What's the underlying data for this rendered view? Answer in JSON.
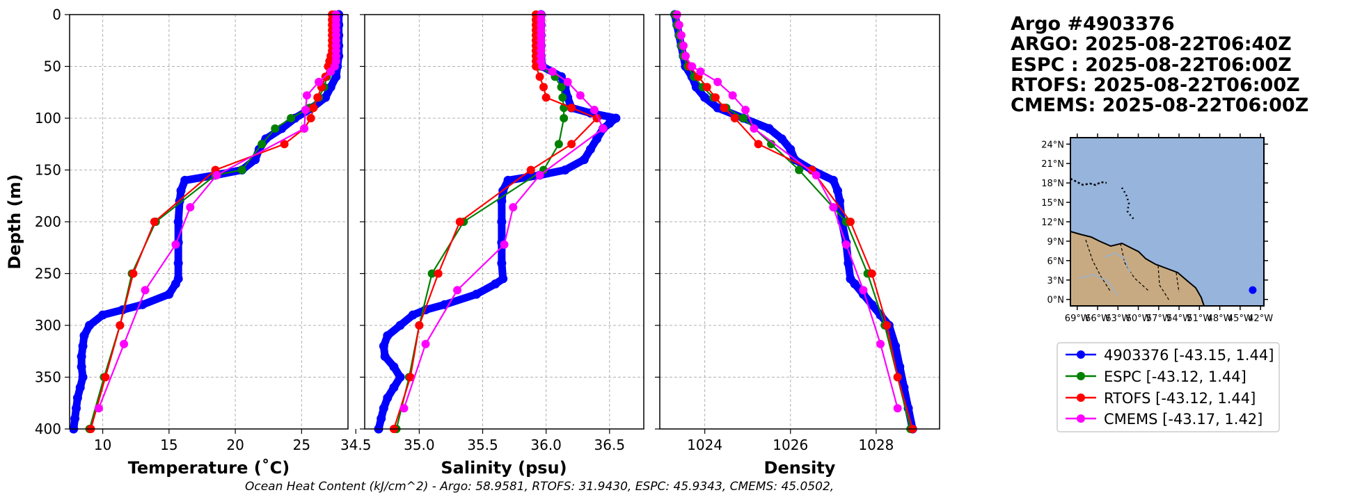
{
  "colors": {
    "argo": "#0000ff",
    "espc": "#008000",
    "rtofs": "#ff0000",
    "cmems": "#ff00ff",
    "ocean": "#96b4dc",
    "land": "#c8aa82"
  },
  "header": {
    "lines": [
      "Argo #4903376",
      "ARGO: 2025-08-22T06:40Z",
      "ESPC : 2025-08-22T06:00Z",
      "RTOFS: 2025-08-22T06:00Z",
      "CMEMS: 2025-08-22T06:00Z"
    ]
  },
  "footer": {
    "text": "Ocean Heat Content (kJ/cm^2) - Argo: 58.9581,  RTOFS: 31.9430,  ESPC: 45.9343,  CMEMS: 45.0502,"
  },
  "legend": {
    "entries": [
      {
        "label": "4903376 [-43.15, 1.44]",
        "color": "#0000ff"
      },
      {
        "label": "ESPC [-43.12, 1.44]",
        "color": "#008000"
      },
      {
        "label": "RTOFS [-43.12, 1.44]",
        "color": "#ff0000"
      },
      {
        "label": "CMEMS [-43.17, 1.42]",
        "color": "#ff00ff"
      }
    ]
  },
  "map": {
    "lat_ticks": [
      "0°N",
      "3°N",
      "6°N",
      "9°N",
      "12°N",
      "15°N",
      "18°N",
      "21°N",
      "24°N"
    ],
    "lon_ticks": [
      "69°W",
      "66°W",
      "63°W",
      "60°W",
      "57°W",
      "54°W",
      "51°W",
      "48°W",
      "45°W",
      "42°W"
    ],
    "lon_range": [
      -70,
      -41.5
    ],
    "lat_range": [
      -1,
      25
    ],
    "float_position": {
      "lon": -43.15,
      "lat": 1.44
    }
  },
  "chart_data": [
    {
      "type": "line",
      "title": "",
      "xlabel": "Temperature (˚C)",
      "ylabel": "Depth (m)",
      "xlim": [
        7.5,
        28.5
      ],
      "ylim": [
        400,
        0
      ],
      "xticks": [
        10,
        15,
        20,
        25
      ],
      "yticks": [
        0,
        50,
        100,
        150,
        200,
        250,
        300,
        350,
        400
      ],
      "grid": true,
      "series": [
        {
          "name": "4903376",
          "key": "argo",
          "depth": [
            0,
            10,
            20,
            30,
            40,
            50,
            60,
            70,
            80,
            90,
            100,
            110,
            120,
            130,
            140,
            150,
            155,
            160,
            170,
            180,
            200,
            220,
            240,
            255,
            260,
            270,
            280,
            285,
            290,
            300,
            310,
            320,
            330,
            340,
            350,
            360,
            370,
            380,
            390,
            400
          ],
          "values": [
            27.8,
            27.8,
            27.8,
            27.8,
            27.8,
            27.7,
            27.6,
            27.2,
            26.8,
            25.8,
            24.5,
            23.5,
            22.3,
            21.8,
            21.5,
            20.5,
            18.5,
            16.2,
            15.9,
            15.8,
            15.7,
            15.7,
            15.7,
            15.7,
            15.5,
            15.0,
            13.0,
            11.5,
            10.0,
            9.0,
            8.6,
            8.5,
            8.4,
            8.4,
            8.5,
            8.3,
            8.1,
            8.0,
            7.9,
            7.8
          ]
        },
        {
          "name": "ESPC",
          "key": "espc",
          "depth": [
            0,
            5,
            10,
            15,
            20,
            25,
            30,
            35,
            40,
            45,
            50,
            60,
            70,
            80,
            90,
            100,
            110,
            125,
            150,
            155,
            200,
            250,
            300,
            350,
            400
          ],
          "values": [
            27.5,
            27.5,
            27.5,
            27.5,
            27.5,
            27.5,
            27.5,
            27.5,
            27.4,
            27.3,
            27.1,
            26.9,
            26.7,
            26.3,
            25.6,
            24.2,
            23.0,
            22.0,
            20.5,
            18.5,
            14.0,
            12.2,
            11.3,
            10.1,
            9.0
          ]
        },
        {
          "name": "RTOFS",
          "key": "rtofs",
          "depth": [
            0,
            5,
            10,
            15,
            20,
            25,
            30,
            35,
            40,
            45,
            50,
            60,
            70,
            80,
            90,
            100,
            110,
            125,
            150,
            200,
            250,
            300,
            350,
            400
          ],
          "values": [
            27.3,
            27.3,
            27.3,
            27.3,
            27.3,
            27.3,
            27.3,
            27.3,
            27.2,
            27.1,
            27.0,
            26.8,
            26.5,
            26.2,
            25.9,
            25.7,
            25.2,
            23.7,
            18.5,
            13.9,
            12.3,
            11.3,
            10.2,
            9.1
          ]
        },
        {
          "name": "CMEMS",
          "key": "cmems",
          "depth": [
            0,
            5,
            10,
            15,
            20,
            25,
            30,
            35,
            40,
            45,
            50,
            55,
            65,
            78,
            92,
            110,
            155,
            186,
            222,
            266,
            318,
            380
          ],
          "values": [
            27.6,
            27.6,
            27.6,
            27.6,
            27.6,
            27.6,
            27.6,
            27.6,
            27.6,
            27.6,
            27.5,
            27.2,
            26.3,
            25.4,
            25.3,
            25.2,
            18.6,
            16.6,
            15.5,
            13.2,
            11.6,
            9.7
          ]
        }
      ]
    },
    {
      "type": "line",
      "title": "",
      "xlabel": "Salinity (psu)",
      "ylabel": "",
      "xlim": [
        34.57,
        36.77
      ],
      "ylim": [
        400,
        0
      ],
      "xticks": [
        34.5,
        35.0,
        35.5,
        36.0,
        36.5
      ],
      "xtick_labels": [
        "34.5",
        "35.0",
        "35.5",
        "36.0",
        "36.5"
      ],
      "yticks": [
        0,
        50,
        100,
        150,
        200,
        250,
        300,
        350,
        400
      ],
      "grid": true,
      "series": [
        {
          "name": "4903376",
          "key": "argo",
          "depth": [
            0,
            10,
            20,
            30,
            40,
            50,
            60,
            70,
            80,
            90,
            95,
            100,
            105,
            110,
            120,
            130,
            140,
            150,
            155,
            160,
            170,
            180,
            200,
            220,
            240,
            255,
            260,
            270,
            280,
            285,
            290,
            300,
            310,
            320,
            330,
            340,
            350,
            360,
            370,
            380,
            390,
            400
          ],
          "values": [
            35.96,
            35.96,
            35.96,
            35.96,
            35.96,
            35.97,
            36.12,
            36.15,
            36.17,
            36.2,
            36.35,
            36.55,
            36.5,
            36.45,
            36.4,
            36.35,
            36.3,
            36.15,
            35.95,
            35.7,
            35.66,
            35.65,
            35.65,
            35.65,
            35.65,
            35.66,
            35.6,
            35.45,
            35.2,
            35.05,
            34.95,
            34.85,
            34.75,
            34.72,
            34.73,
            34.8,
            34.85,
            34.8,
            34.75,
            34.72,
            34.7,
            34.68
          ]
        },
        {
          "name": "ESPC",
          "key": "espc",
          "depth": [
            0,
            5,
            10,
            15,
            20,
            25,
            30,
            35,
            40,
            45,
            50,
            60,
            70,
            80,
            90,
            100,
            125,
            150,
            200,
            250,
            300,
            350,
            400
          ],
          "values": [
            35.92,
            35.92,
            35.92,
            35.92,
            35.92,
            35.92,
            35.92,
            35.92,
            35.92,
            35.93,
            35.95,
            36.07,
            36.12,
            36.13,
            36.14,
            36.14,
            36.1,
            35.98,
            35.35,
            35.1,
            35.0,
            34.92,
            34.82
          ]
        },
        {
          "name": "RTOFS",
          "key": "rtofs",
          "depth": [
            0,
            5,
            10,
            15,
            20,
            25,
            30,
            35,
            40,
            45,
            50,
            60,
            70,
            80,
            90,
            100,
            125,
            150,
            200,
            250,
            300,
            350,
            400
          ],
          "values": [
            35.92,
            35.92,
            35.92,
            35.92,
            35.92,
            35.92,
            35.92,
            35.92,
            35.92,
            35.92,
            35.92,
            35.95,
            35.98,
            36.0,
            36.2,
            36.4,
            36.2,
            35.88,
            35.32,
            35.15,
            35.0,
            34.93,
            34.8
          ]
        },
        {
          "name": "CMEMS",
          "key": "cmems",
          "depth": [
            0,
            5,
            10,
            15,
            20,
            25,
            30,
            35,
            40,
            45,
            50,
            55,
            65,
            78,
            92,
            110,
            155,
            186,
            222,
            266,
            318,
            380
          ],
          "values": [
            35.96,
            35.96,
            35.96,
            35.96,
            35.96,
            35.96,
            35.96,
            35.96,
            35.96,
            35.96,
            35.97,
            36.05,
            36.17,
            36.27,
            36.38,
            36.45,
            35.95,
            35.74,
            35.67,
            35.3,
            35.05,
            34.88
          ]
        }
      ]
    },
    {
      "type": "line",
      "title": "",
      "xlabel": "Density",
      "ylabel": "",
      "xlim": [
        1022.95,
        1029.48
      ],
      "ylim": [
        400,
        0
      ],
      "xticks": [
        1024,
        1026,
        1028
      ],
      "yticks": [
        0,
        50,
        100,
        150,
        200,
        250,
        300,
        350,
        400
      ],
      "grid": true,
      "series": [
        {
          "name": "4903376",
          "key": "argo",
          "depth": [
            0,
            10,
            20,
            30,
            40,
            50,
            60,
            70,
            80,
            90,
            100,
            110,
            120,
            130,
            140,
            150,
            160,
            170,
            180,
            200,
            220,
            240,
            255,
            260,
            270,
            280,
            290,
            300,
            320,
            340,
            360,
            380,
            400
          ],
          "values": [
            1023.3,
            1023.35,
            1023.4,
            1023.45,
            1023.5,
            1023.55,
            1023.7,
            1023.8,
            1024.0,
            1024.3,
            1024.9,
            1025.5,
            1025.8,
            1026.0,
            1026.1,
            1026.5,
            1027.0,
            1027.1,
            1027.15,
            1027.2,
            1027.3,
            1027.35,
            1027.4,
            1027.5,
            1027.7,
            1027.9,
            1028.1,
            1028.3,
            1028.45,
            1028.55,
            1028.65,
            1028.75,
            1028.85
          ]
        },
        {
          "name": "ESPC",
          "key": "espc",
          "depth": [
            0,
            10,
            20,
            30,
            40,
            50,
            60,
            70,
            80,
            90,
            100,
            125,
            150,
            200,
            250,
            300,
            350,
            400
          ],
          "values": [
            1023.3,
            1023.35,
            1023.4,
            1023.45,
            1023.5,
            1023.6,
            1023.75,
            1023.95,
            1024.2,
            1024.5,
            1024.9,
            1025.55,
            1026.2,
            1027.3,
            1027.8,
            1028.2,
            1028.5,
            1028.8
          ]
        },
        {
          "name": "RTOFS",
          "key": "rtofs",
          "depth": [
            0,
            10,
            20,
            30,
            40,
            50,
            60,
            70,
            80,
            90,
            100,
            125,
            150,
            200,
            250,
            300,
            350,
            400
          ],
          "values": [
            1023.35,
            1023.4,
            1023.45,
            1023.5,
            1023.55,
            1023.65,
            1023.85,
            1024.05,
            1024.25,
            1024.45,
            1024.7,
            1025.25,
            1026.5,
            1027.4,
            1027.9,
            1028.25,
            1028.5,
            1028.85
          ]
        },
        {
          "name": "CMEMS",
          "key": "cmems",
          "depth": [
            0,
            10,
            20,
            30,
            40,
            50,
            55,
            65,
            78,
            92,
            110,
            155,
            186,
            222,
            266,
            318,
            380
          ],
          "values": [
            1023.35,
            1023.4,
            1023.45,
            1023.5,
            1023.55,
            1023.7,
            1023.9,
            1024.3,
            1024.65,
            1024.95,
            1025.15,
            1026.6,
            1027.0,
            1027.3,
            1027.7,
            1028.1,
            1028.5
          ]
        }
      ]
    }
  ]
}
